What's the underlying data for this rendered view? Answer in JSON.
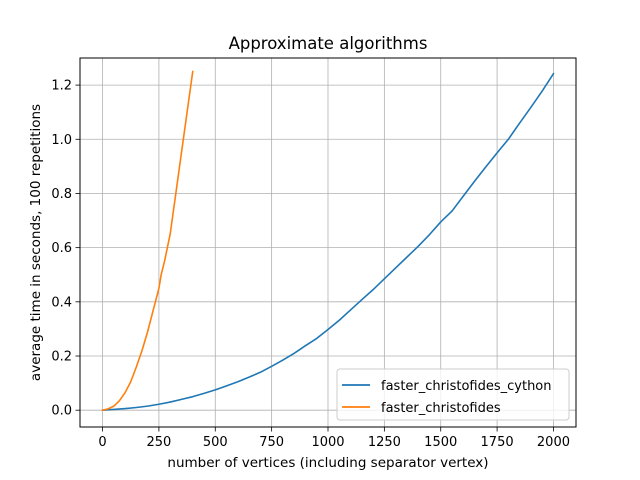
{
  "chart_data": {
    "type": "line",
    "title": "Approximate algorithms",
    "xlabel": "number of vertices (including separator vertex)",
    "ylabel": "average time in seconds, 100 repetitions",
    "xlim": [
      -100,
      2100
    ],
    "ylim": [
      -0.062,
      1.3
    ],
    "xticks": [
      0,
      250,
      500,
      750,
      1000,
      1250,
      1500,
      1750,
      2000
    ],
    "yticks": [
      0.0,
      0.2,
      0.4,
      0.6,
      0.8,
      1.0,
      1.2
    ],
    "xtick_labels": [
      "0",
      "250",
      "500",
      "750",
      "1000",
      "1250",
      "1500",
      "1750",
      "2000"
    ],
    "ytick_labels": [
      "0.0",
      "0.2",
      "0.4",
      "0.6",
      "0.8",
      "1.0",
      "1.2"
    ],
    "grid": true,
    "legend_position": "lower-right",
    "series": [
      {
        "name": "faster_christofides_cython",
        "color": "#1f77b4",
        "x": [
          0,
          50,
          100,
          150,
          200,
          250,
          300,
          350,
          400,
          450,
          500,
          550,
          600,
          650,
          700,
          750,
          800,
          850,
          900,
          950,
          1000,
          1050,
          1100,
          1150,
          1200,
          1250,
          1300,
          1350,
          1400,
          1450,
          1500,
          1550,
          1600,
          1650,
          1700,
          1750,
          1800,
          1850,
          1900,
          1950,
          2000
        ],
        "y": [
          0.0,
          0.003,
          0.006,
          0.01,
          0.015,
          0.022,
          0.03,
          0.04,
          0.05,
          0.062,
          0.075,
          0.09,
          0.105,
          0.122,
          0.14,
          0.162,
          0.185,
          0.21,
          0.238,
          0.265,
          0.298,
          0.332,
          0.37,
          0.408,
          0.445,
          0.485,
          0.525,
          0.565,
          0.605,
          0.648,
          0.695,
          0.735,
          0.79,
          0.845,
          0.898,
          0.95,
          1.0,
          1.06,
          1.118,
          1.178,
          1.242
        ]
      },
      {
        "name": "faster_christofides",
        "color": "#ff7f0e",
        "x": [
          0,
          25,
          50,
          75,
          100,
          125,
          150,
          175,
          200,
          225,
          250,
          260,
          275,
          300,
          325,
          350,
          375,
          400
        ],
        "y": [
          0.0,
          0.005,
          0.015,
          0.035,
          0.065,
          0.105,
          0.16,
          0.22,
          0.29,
          0.37,
          0.45,
          0.5,
          0.55,
          0.65,
          0.8,
          0.95,
          1.1,
          1.25
        ]
      }
    ]
  }
}
